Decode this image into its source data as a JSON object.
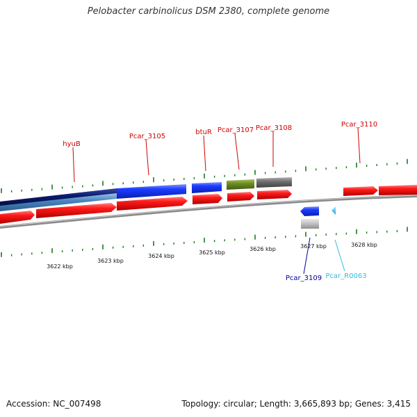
{
  "title": "Pelobacter carbinolicus DSM 2380, complete genome",
  "footer": {
    "accession": "Accession: NC_007498",
    "summary": "Topology: circular; Length: 3,665,893 bp; Genes: 3,415"
  },
  "colors": {
    "cds_forward": "#ff1a1a",
    "cds_reverse_blue": "#1a3cff",
    "navy": "#0a1a6e",
    "steel": "#4a86c0",
    "olive": "#6b8e23",
    "gray": "#707070",
    "tick": "#1a7a1a",
    "backbone": "#8a8a8a",
    "label_red": "#cc0000",
    "label_navy": "#000099",
    "label_cyan": "#33bbdd"
  },
  "ticks": {
    "unit": "kbp",
    "major_labels": [
      "3622 kbp",
      "3623 kbp",
      "3624 kbp",
      "3625 kbp",
      "3626 kbp",
      "3627 kbp",
      "3628 kbp"
    ]
  },
  "gene_labels": [
    {
      "name": "hyuB",
      "color": "label_red"
    },
    {
      "name": "Pcar_3105",
      "color": "label_red"
    },
    {
      "name": "btuR",
      "color": "label_red"
    },
    {
      "name": "Pcar_3107",
      "color": "label_red"
    },
    {
      "name": "Pcar_3108",
      "color": "label_red"
    },
    {
      "name": "Pcar_3110",
      "color": "label_red"
    },
    {
      "name": "Pcar_3109",
      "color": "label_navy"
    },
    {
      "name": "Pcar_R0063",
      "color": "label_cyan"
    }
  ]
}
